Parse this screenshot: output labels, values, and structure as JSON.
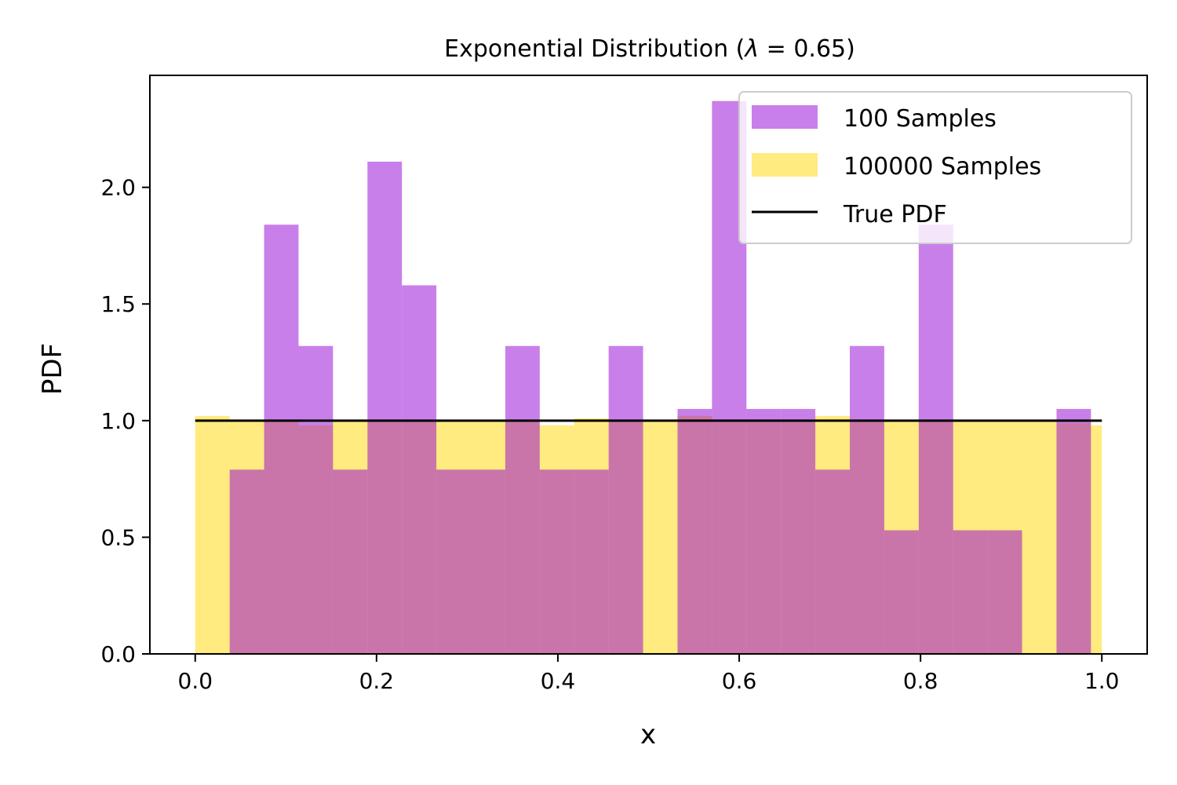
{
  "chart_data": {
    "type": "bar",
    "title": "Exponential Distribution (λ = 0.65)",
    "title_prefix": "Exponential Distribution (",
    "title_symbol": "λ",
    "title_value": " = 0.65)",
    "xlabel": "x",
    "ylabel": "PDF",
    "xlim": [
      -0.05,
      1.05
    ],
    "ylim": [
      0,
      2.48
    ],
    "xticks": [
      0.0,
      0.2,
      0.4,
      0.6,
      0.8,
      1.0
    ],
    "xtick_labels": [
      "0.0",
      "0.2",
      "0.4",
      "0.6",
      "0.8",
      "1.0"
    ],
    "yticks": [
      0.0,
      0.5,
      1.0,
      1.5,
      2.0
    ],
    "ytick_labels": [
      "0.0",
      "0.5",
      "1.0",
      "1.5",
      "2.0"
    ],
    "grid": false,
    "legend_position": "top-right",
    "series": [
      {
        "name": "100 Samples",
        "kind": "histogram",
        "color": "#9400d3",
        "opacity": 0.5,
        "bin_edges": [
          0.0,
          0.038,
          0.076,
          0.114,
          0.152,
          0.19,
          0.228,
          0.266,
          0.304,
          0.342,
          0.38,
          0.418,
          0.456,
          0.494,
          0.532,
          0.57,
          0.608,
          0.646,
          0.684,
          0.722,
          0.76,
          0.798,
          0.836,
          0.874,
          0.912,
          0.95,
          0.988
        ],
        "values": [
          0.0,
          0.79,
          1.84,
          1.32,
          0.79,
          2.11,
          1.58,
          0.79,
          0.79,
          1.32,
          0.79,
          0.79,
          1.32,
          0.0,
          1.05,
          2.37,
          1.05,
          1.05,
          0.79,
          1.32,
          0.53,
          1.84,
          0.53,
          0.53,
          0.0,
          1.05
        ]
      },
      {
        "name": "100000 Samples",
        "kind": "histogram",
        "color": "#ffd700",
        "opacity": 0.5,
        "bin_edges": [
          0.0,
          0.038,
          0.076,
          0.114,
          0.152,
          0.19,
          0.228,
          0.266,
          0.304,
          0.342,
          0.38,
          0.418,
          0.456,
          0.494,
          0.532,
          0.57,
          0.608,
          0.646,
          0.684,
          0.722,
          0.76,
          0.798,
          0.836,
          0.874,
          0.912,
          0.95,
          0.988,
          1.0
        ],
        "values": [
          1.02,
          1.0,
          1.0,
          0.98,
          1.0,
          1.0,
          1.0,
          1.0,
          1.0,
          1.0,
          0.98,
          1.01,
          1.0,
          1.0,
          1.02,
          1.0,
          1.0,
          1.0,
          1.02,
          1.0,
          1.0,
          1.0,
          1.0,
          1.0,
          1.0,
          0.99,
          0.98
        ]
      },
      {
        "name": "True PDF",
        "kind": "line",
        "color": "#000000",
        "x": [
          0.0,
          1.0
        ],
        "y": [
          1.0,
          1.0
        ]
      }
    ]
  }
}
